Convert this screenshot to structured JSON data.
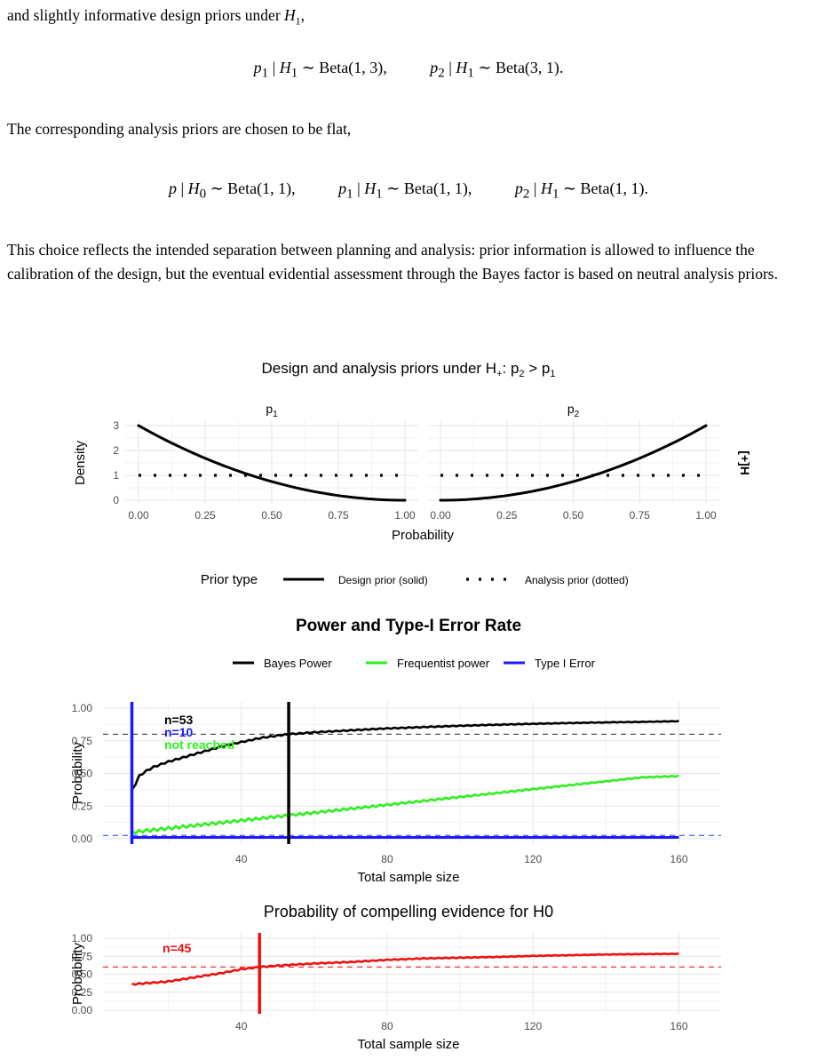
{
  "text": {
    "para1": "and slightly informative design priors under H1,",
    "eq1": [
      "p1 | H1 ~ Beta(1, 3),",
      "p2 | H1 ~ Beta(3, 1)."
    ],
    "para2": "The corresponding analysis priors are chosen to be flat,",
    "eq2": [
      "p | H0 ~ Beta(1, 1),",
      "p1 | H1 ~ Beta(1, 1),",
      "p2 | H1 ~ Beta(1, 1)."
    ],
    "para3": "This choice reflects the intended separation between planning and analysis: prior information is allowed to influence the calibration of the design, but the eventual evidential assessment through the Bayes factor is based on neutral analysis priors."
  },
  "chart_data": [
    {
      "type": "line",
      "title": "Design and analysis priors under H+: p2 > p1",
      "facets": [
        "p1",
        "p2"
      ],
      "strip_label": "[+]H",
      "xlabel": "Probability",
      "ylabel": "Density",
      "xlim": [
        0,
        1
      ],
      "ylim": [
        0,
        3
      ],
      "xticks": [
        "0.00",
        "0.25",
        "0.50",
        "0.75",
        "1.00"
      ],
      "yticks": [
        "0",
        "1",
        "2",
        "3"
      ],
      "legend": {
        "title": "Prior type",
        "items": [
          "Design prior (solid)",
          "Analysis prior (dotted)"
        ],
        "position": "bottom"
      },
      "series": [
        {
          "facet": "p1",
          "name": "Design prior (solid)",
          "dist": "Beta(1,3)",
          "x": [
            0,
            0.25,
            0.5,
            0.75,
            1
          ],
          "y": [
            3,
            1.6875,
            0.75,
            0.1875,
            0
          ]
        },
        {
          "facet": "p1",
          "name": "Analysis prior (dotted)",
          "dist": "Beta(1,1)",
          "x": [
            0,
            1
          ],
          "y": [
            1,
            1
          ]
        },
        {
          "facet": "p2",
          "name": "Design prior (solid)",
          "dist": "Beta(3,1)",
          "x": [
            0,
            0.25,
            0.5,
            0.75,
            1
          ],
          "y": [
            0,
            0.1875,
            0.75,
            1.6875,
            3
          ]
        },
        {
          "facet": "p2",
          "name": "Analysis prior (dotted)",
          "dist": "Beta(1,1)",
          "x": [
            0,
            1
          ],
          "y": [
            1,
            1
          ]
        }
      ],
      "colors": {
        "line": "#000000"
      }
    },
    {
      "type": "line",
      "title": "Power and Type-I Error Rate",
      "xlabel": "Total sample size",
      "ylabel": "Probability",
      "xlim": [
        10,
        160
      ],
      "ylim": [
        0,
        1
      ],
      "xticks": [
        40,
        80,
        120,
        160
      ],
      "yticks": [
        "0.00",
        "0.25",
        "0.50",
        "0.75",
        "1.00"
      ],
      "legend": {
        "position": "top",
        "items": [
          "Bayes Power",
          "Frequentist power",
          "Type I Error"
        ]
      },
      "series": [
        {
          "name": "Bayes Power",
          "color": "#000000",
          "x": [
            10,
            11,
            12,
            14,
            16,
            18,
            20,
            25,
            30,
            35,
            40,
            45,
            50,
            53,
            60,
            70,
            80,
            90,
            100,
            110,
            120,
            130,
            140,
            150,
            160
          ],
          "y": [
            0.37,
            0.42,
            0.48,
            0.52,
            0.55,
            0.57,
            0.59,
            0.63,
            0.67,
            0.71,
            0.74,
            0.77,
            0.79,
            0.8,
            0.815,
            0.83,
            0.845,
            0.855,
            0.865,
            0.873,
            0.88,
            0.886,
            0.891,
            0.895,
            0.9
          ]
        },
        {
          "name": "Frequentist power",
          "color": "#2ef01f",
          "x": [
            10,
            20,
            30,
            40,
            50,
            60,
            70,
            80,
            90,
            100,
            110,
            120,
            130,
            140,
            150,
            160
          ],
          "y": [
            0.05,
            0.08,
            0.11,
            0.14,
            0.17,
            0.2,
            0.23,
            0.26,
            0.29,
            0.32,
            0.35,
            0.38,
            0.41,
            0.44,
            0.47,
            0.48
          ]
        },
        {
          "name": "Type I Error",
          "color": "#1a1aff",
          "x": [
            10,
            160
          ],
          "y": [
            0.01,
            0.01
          ]
        }
      ],
      "hlines": [
        {
          "y": 0.8,
          "color": "#555555",
          "style": "dashed"
        },
        {
          "y": 0.025,
          "color": "#5a6fff",
          "style": "dashed"
        }
      ],
      "vlines": [
        {
          "x": 10,
          "color": "#1a1aff"
        },
        {
          "x": 53,
          "color": "#000000"
        }
      ],
      "annotations": [
        {
          "text": "n=53",
          "color": "#000000"
        },
        {
          "text": "n=10",
          "color": "#1a1aff"
        },
        {
          "text": "not reached",
          "color": "#2ef01f"
        }
      ]
    },
    {
      "type": "line",
      "title": "Probability of compelling evidence for H0",
      "xlabel": "Total sample size",
      "ylabel": "Probability",
      "xlim": [
        10,
        160
      ],
      "ylim": [
        0,
        1
      ],
      "xticks": [
        40,
        80,
        120,
        160
      ],
      "yticks": [
        "0.00",
        "0.25",
        "0.50",
        "0.75",
        "1.00"
      ],
      "series": [
        {
          "name": "",
          "color": "#ee1111",
          "x": [
            10,
            15,
            20,
            25,
            30,
            35,
            40,
            45,
            50,
            60,
            70,
            80,
            90,
            100,
            110,
            120,
            130,
            140,
            150,
            160
          ],
          "y": [
            0.36,
            0.38,
            0.4,
            0.44,
            0.48,
            0.52,
            0.57,
            0.6,
            0.62,
            0.65,
            0.67,
            0.7,
            0.72,
            0.73,
            0.74,
            0.755,
            0.765,
            0.775,
            0.78,
            0.785
          ]
        }
      ],
      "hlines": [
        {
          "y": 0.6,
          "color": "#ee3333",
          "style": "dashed"
        }
      ],
      "vlines": [
        {
          "x": 45,
          "color": "#ee1111"
        }
      ],
      "annotations": [
        {
          "text": "n=45",
          "color": "#ee1111"
        }
      ]
    }
  ]
}
